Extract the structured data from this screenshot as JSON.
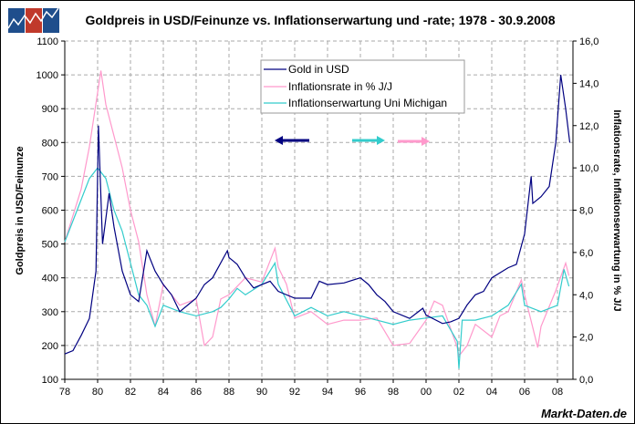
{
  "chart_data": {
    "type": "line",
    "title": "Goldpreis in USD/Feinunze vs. Inflationserwartung und -rate; 1978 - 30.9.2008",
    "ylabel_left": "Goldpreis in USD/Feinunze",
    "ylabel_right": "Inflationsrate, Inflationserwartung in % J/J",
    "source": "Markt-Daten.de",
    "xlim": [
      1978,
      2009
    ],
    "ylim_left": [
      100,
      1100
    ],
    "ylim_right": [
      0,
      16
    ],
    "grid": true,
    "legend_position": "top-center",
    "x_ticks": [
      "78",
      "80",
      "82",
      "84",
      "86",
      "88",
      "90",
      "92",
      "94",
      "96",
      "98",
      "00",
      "02",
      "04",
      "06",
      "08"
    ],
    "y_ticks_left": [
      "100",
      "200",
      "300",
      "400",
      "500",
      "600",
      "700",
      "800",
      "900",
      "1000",
      "1100"
    ],
    "y_ticks_right": [
      "0,0",
      "2,0",
      "4,0",
      "6,0",
      "8,0",
      "10,0",
      "12,0",
      "14,0",
      "16,0"
    ],
    "series": [
      {
        "name": "Gold in USD",
        "axis": "left",
        "color": "#000080",
        "x": [
          1978,
          1978.5,
          1979,
          1979.5,
          1979.9,
          1980.05,
          1980.3,
          1980.7,
          1981,
          1981.5,
          1982,
          1982.5,
          1983,
          1983.5,
          1984,
          1984.5,
          1985,
          1985.5,
          1986,
          1986.5,
          1987,
          1987.9,
          1988,
          1988.5,
          1989,
          1989.5,
          1990,
          1990.5,
          1991,
          1992,
          1993,
          1993.5,
          1994,
          1995,
          1996,
          1996.5,
          1997,
          1997.5,
          1998,
          1999,
          1999.8,
          2000,
          2001,
          2001.5,
          2002,
          2002.5,
          2003,
          2003.5,
          2004,
          2005,
          2005.5,
          2006,
          2006.4,
          2006.5,
          2007,
          2007.5,
          2007.9,
          2008.2,
          2008.5,
          2008.75
        ],
        "y": [
          175,
          185,
          230,
          280,
          420,
          850,
          500,
          650,
          550,
          420,
          350,
          330,
          480,
          420,
          380,
          350,
          300,
          320,
          340,
          380,
          400,
          480,
          460,
          440,
          400,
          370,
          380,
          390,
          360,
          340,
          340,
          390,
          380,
          385,
          400,
          380,
          350,
          330,
          300,
          280,
          310,
          290,
          265,
          270,
          280,
          320,
          350,
          360,
          400,
          430,
          440,
          530,
          700,
          620,
          640,
          670,
          800,
          1000,
          900,
          800
        ]
      },
      {
        "name": "Inflationsrate in % J/J",
        "axis": "right",
        "color": "#ff99cc",
        "x": [
          1978,
          1979,
          1979.5,
          1980.2,
          1980.5,
          1981,
          1981.5,
          1982,
          1982.5,
          1983,
          1983.5,
          1984,
          1985,
          1986,
          1986.5,
          1987,
          1987.5,
          1988,
          1989,
          1990,
          1990.8,
          1991,
          1991.5,
          1992,
          1993,
          1994,
          1995,
          1996,
          1997,
          1998,
          1999,
          2000,
          2000.5,
          2001,
          2001.9,
          2002,
          2002.5,
          2003,
          2004,
          2004.5,
          2005,
          2005.8,
          2006,
          2006.8,
          2007,
          2007.9,
          2008.5,
          2008.7
        ],
        "y": [
          6.5,
          9,
          11,
          14.6,
          13,
          11.5,
          10,
          8,
          6.5,
          4,
          2.5,
          4.5,
          3.5,
          3.8,
          1.6,
          2,
          3.8,
          4,
          4.8,
          4.6,
          6.2,
          5.3,
          4.5,
          2.9,
          3.2,
          2.6,
          2.8,
          2.8,
          2.9,
          1.6,
          1.7,
          2.8,
          3.7,
          3.5,
          1.5,
          1.1,
          1.6,
          2.6,
          2,
          3,
          3.2,
          4.7,
          4,
          1.5,
          2.5,
          4.2,
          5.5,
          4.9
        ]
      },
      {
        "name": "Inflationserwartung Uni Michigan",
        "axis": "right",
        "color": "#33cccc",
        "x": [
          1978,
          1978.5,
          1979,
          1979.5,
          1980,
          1980.5,
          1981,
          1981.5,
          1982,
          1982.5,
          1983,
          1983.5,
          1984,
          1985,
          1986,
          1987,
          1987.5,
          1988,
          1988.5,
          1989,
          1990,
          1990.8,
          1991,
          1992,
          1993,
          1994,
          1995,
          1996,
          1997,
          1998,
          1999,
          2000,
          2001,
          2001.9,
          2002,
          2002.2,
          2003,
          2004,
          2005,
          2005.8,
          2006,
          2007,
          2008,
          2008.4,
          2008.7
        ],
        "y": [
          6.5,
          7.5,
          8.5,
          9.5,
          10,
          9.5,
          8,
          7,
          5.5,
          4,
          3.5,
          2.5,
          3.5,
          3.2,
          3,
          3.2,
          3.4,
          3.8,
          4.3,
          4,
          4.5,
          5.5,
          4.5,
          3,
          3.4,
          3,
          3.2,
          3,
          2.8,
          2.6,
          2.8,
          2.9,
          3,
          1.8,
          0.5,
          2.8,
          2.8,
          3,
          3.5,
          4.5,
          3.5,
          3.2,
          3.5,
          5.2,
          4.4
        ]
      }
    ]
  }
}
